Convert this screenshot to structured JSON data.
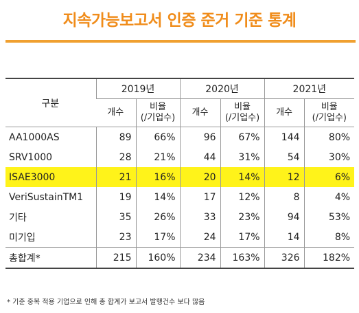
{
  "title": "지속가능보고서 인증 준거 기준 통계",
  "table": {
    "corner_label": "구분",
    "years": [
      "2019년",
      "2020년",
      "2021년"
    ],
    "sub_headers": {
      "count": "개수",
      "ratio_line1": "비율",
      "ratio_line2": "(/기업수)"
    },
    "rows": [
      {
        "label": "AA1000AS",
        "cells": [
          "89",
          "66%",
          "96",
          "67%",
          "144",
          "80%"
        ],
        "highlight": false
      },
      {
        "label": "SRV1000",
        "cells": [
          "28",
          "21%",
          "44",
          "31%",
          "54",
          "30%"
        ],
        "highlight": false
      },
      {
        "label": "ISAE3000",
        "cells": [
          "21",
          "16%",
          "20",
          "14%",
          "12",
          "6%"
        ],
        "highlight": true
      },
      {
        "label": "VeriSustainTM1",
        "cells": [
          "19",
          "14%",
          "17",
          "12%",
          "8",
          "4%"
        ],
        "highlight": false
      },
      {
        "label": "기타",
        "cells": [
          "35",
          "26%",
          "33",
          "23%",
          "94",
          "53%"
        ],
        "highlight": false
      },
      {
        "label": "미기입",
        "cells": [
          "23",
          "17%",
          "24",
          "17%",
          "14",
          "8%"
        ],
        "highlight": false
      }
    ],
    "total": {
      "label": "총합계*",
      "cells": [
        "215",
        "160%",
        "234",
        "163%",
        "326",
        "182%"
      ]
    }
  },
  "footnote": "* 기준 중복 적용 기업으로 인해 총 합계가 보고서 발행건수 보다 많음",
  "colors": {
    "title": "#f08c1a",
    "rule": "#f0a030",
    "highlight": "#fff31a"
  }
}
